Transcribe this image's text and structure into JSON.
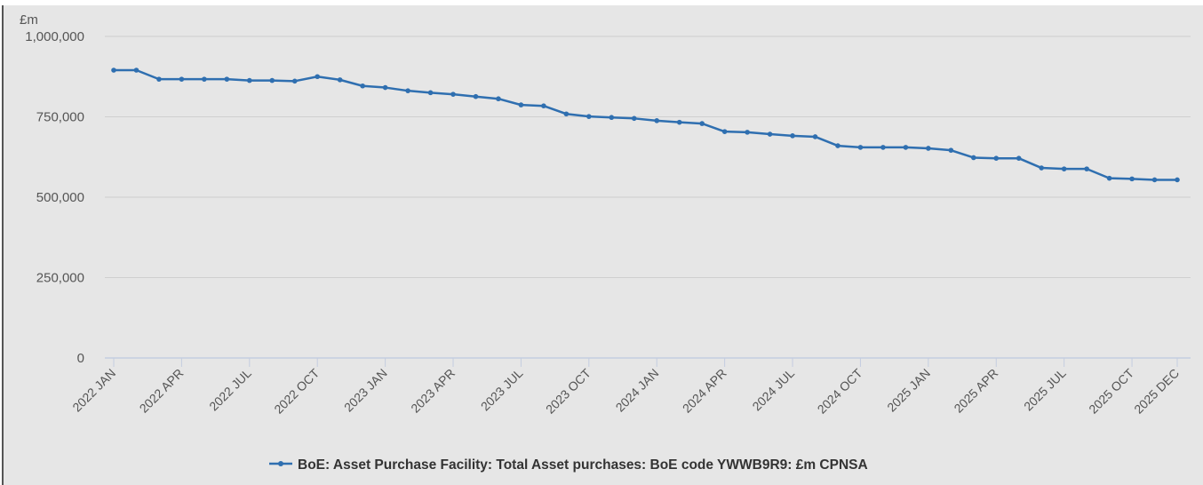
{
  "chart_data": {
    "type": "line",
    "title": "",
    "ylabel": "£m",
    "ylim": [
      0,
      1000000
    ],
    "yticks": [
      0,
      250000,
      500000,
      750000,
      1000000
    ],
    "ytick_labels": [
      "0",
      "250,000",
      "500,000",
      "750,000",
      "1,000,000"
    ],
    "grid": true,
    "legend": "bottom-center",
    "x": [
      "2022 JAN",
      "2022 FEB",
      "2022 MAR",
      "2022 APR",
      "2022 MAY",
      "2022 JUN",
      "2022 JUL",
      "2022 AUG",
      "2022 SEP",
      "2022 OCT",
      "2022 NOV",
      "2022 DEC",
      "2023 JAN",
      "2023 FEB",
      "2023 MAR",
      "2023 APR",
      "2023 MAY",
      "2023 JUN",
      "2023 JUL",
      "2023 AUG",
      "2023 SEP",
      "2023 OCT",
      "2023 NOV",
      "2023 DEC",
      "2024 JAN",
      "2024 FEB",
      "2024 MAR",
      "2024 APR",
      "2024 MAY",
      "2024 JUN",
      "2024 JUL",
      "2024 AUG",
      "2024 SEP",
      "2024 OCT",
      "2024 NOV",
      "2024 DEC",
      "2025 JAN",
      "2025 FEB",
      "2025 MAR",
      "2025 APR",
      "2025 MAY",
      "2025 JUN",
      "2025 JUL",
      "2025 AUG",
      "2025 SEP",
      "2025 OCT",
      "2025 NOV",
      "2025 DEC"
    ],
    "xtick_labels": [
      "2022 JAN",
      "2022 APR",
      "2022 JUL",
      "2022 OCT",
      "2023 JAN",
      "2023 APR",
      "2023 JUL",
      "2023 OCT",
      "2024 JAN",
      "2024 APR",
      "2024 JUL",
      "2024 OCT",
      "2025 JAN",
      "2025 APR",
      "2025 JUL",
      "2025 OCT",
      "2025 DEC"
    ],
    "series": [
      {
        "name": "BoE: Asset Purchase Facility: Total Asset purchases: BoE code YWWB9R9: £m CPNSA",
        "color": "#2f6fb0",
        "values": [
          895000,
          895000,
          867000,
          867000,
          867000,
          867000,
          863000,
          863000,
          861000,
          875000,
          865000,
          846000,
          841000,
          831000,
          825000,
          820000,
          813000,
          806000,
          787000,
          784000,
          759000,
          751000,
          748000,
          745000,
          738000,
          733000,
          729000,
          704000,
          702000,
          696000,
          691000,
          688000,
          660000,
          655000,
          655000,
          655000,
          652000,
          646000,
          623000,
          621000,
          621000,
          591000,
          588000,
          588000,
          559000,
          557000,
          554000,
          554000
        ]
      }
    ]
  }
}
